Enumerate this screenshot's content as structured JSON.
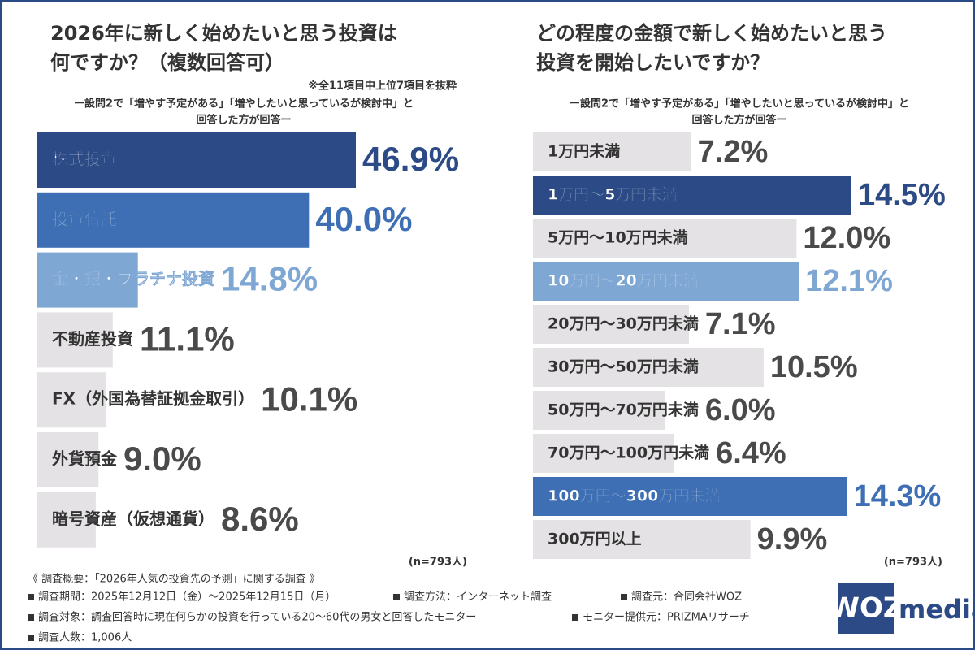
{
  "chart_data": [
    {
      "type": "barh",
      "title": [
        "2026年に新しく始めたいと思う投資は",
        "何ですか？（複数回答可）"
      ],
      "note": "※全11項目中上位7項目を抜粋",
      "subtitle": [
        "ー設問2で「増やす予定がある」「増やしたいと思っているが検討中」と",
        "回答した方が回答ー"
      ],
      "categories": [
        "株式投資",
        "投資信託",
        "金・銀・プラチナ投資",
        "不動産投資",
        "FX（外国為替証拠金取引）",
        "外貨預金",
        "暗号資産（仮想通貨）"
      ],
      "values": [
        46.9,
        40.0,
        14.8,
        11.1,
        10.1,
        9.0,
        8.6
      ],
      "value_labels": [
        "46.9%",
        "40.0%",
        "14.8%",
        "11.1%",
        "10.1%",
        "9.0%",
        "8.6%"
      ],
      "colors": [
        "#2c4b86",
        "#3e6fb4",
        "#7fa7d4",
        "#e4e2e4",
        "#e4e2e4",
        "#e4e2e4",
        "#e4e2e4"
      ],
      "sample": "(n=793人)"
    },
    {
      "type": "barh",
      "title": [
        "どの程度の金額で新しく始めたいと思う",
        "投資を開始したいですか？"
      ],
      "subtitle": [
        "ー設問2で「増やす予定がある」「増やしたいと思っているが検討中」と",
        "回答した方が回答ー"
      ],
      "categories": [
        "1万円未満",
        "1万円〜5万円未満",
        "5万円〜10万円未満",
        "10万円〜20万円未満",
        "20万円〜30万円未満",
        "30万円〜50万円未満",
        "50万円〜70万円未満",
        "70万円〜100万円未満",
        "100万円〜300万円未満",
        "300万円以上"
      ],
      "values": [
        7.2,
        14.5,
        12.0,
        12.1,
        7.1,
        10.5,
        6.0,
        6.4,
        14.3,
        9.9
      ],
      "value_labels": [
        "7.2%",
        "14.5%",
        "12.0%",
        "12.1%",
        "7.1%",
        "10.5%",
        "6.0%",
        "6.4%",
        "14.3%",
        "9.9%"
      ],
      "colors": [
        "#e4e2e4",
        "#2c4b86",
        "#e4e2e4",
        "#7fa7d4",
        "#e4e2e4",
        "#e4e2e4",
        "#e4e2e4",
        "#e4e2e4",
        "#3e6fb4",
        "#e4e2e4"
      ],
      "sample": "(n=793人)"
    }
  ],
  "footer": {
    "heading": "《 調査概要：「2026年人気の投資先の予測」に関する調査 》",
    "items": [
      "調査期間：2025年12月12日（金）〜2025年12月15日（月）",
      "調査方法：インターネット調査",
      "調査元：合同会社WOZ",
      "調査対象：調査回答時に現在何らかの投資を行っている20〜60代の男女と回答したモニター",
      "モニター提供元：PRIZMAリサーチ",
      "調査人数：1,006人"
    ]
  },
  "logo": {
    "mark": "WOZ",
    "text": "media"
  }
}
